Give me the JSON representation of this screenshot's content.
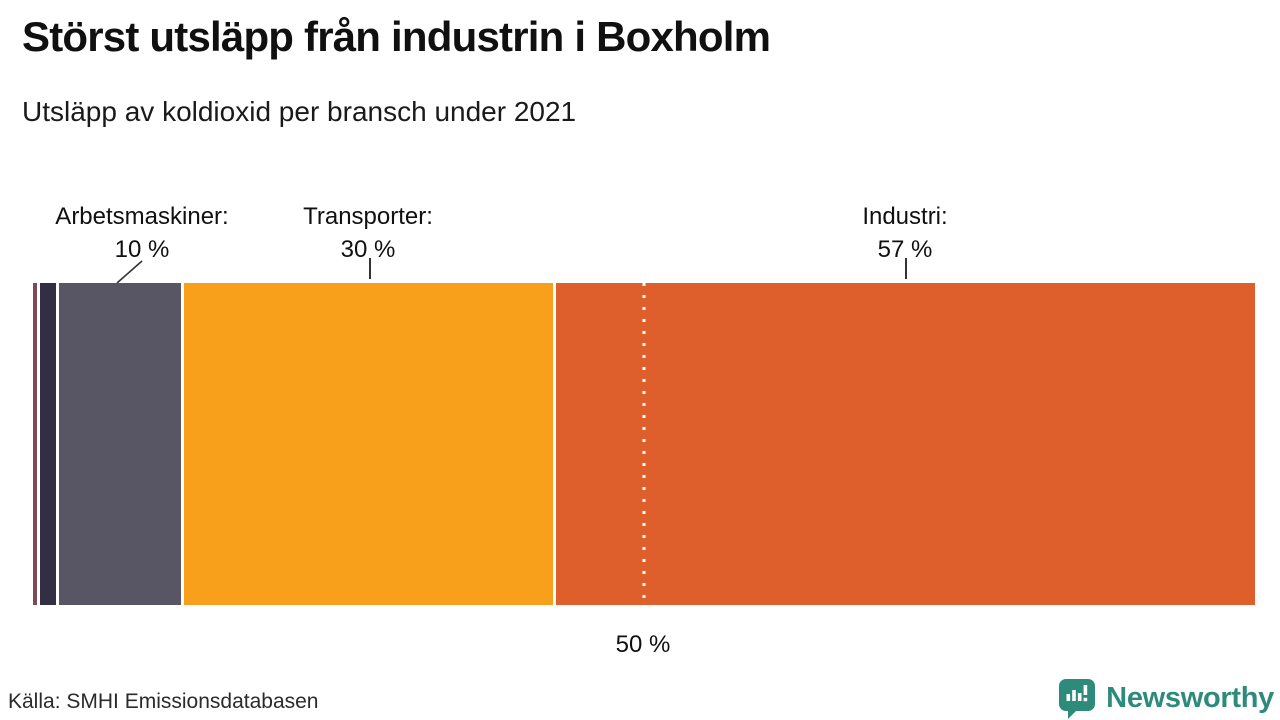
{
  "header": {
    "title": "Störst utsläpp från industrin i Boxholm",
    "subtitle": "Utsläpp av koldioxid per bransch under 2021"
  },
  "chart_data": {
    "type": "bar",
    "variant": "horizontal-stacked-single-bar",
    "unit": "%",
    "xlim": [
      0,
      100
    ],
    "segments": [
      {
        "label": "",
        "value": 0.3,
        "color": "#7E4A58"
      },
      {
        "label": "",
        "value": 1.3,
        "color": "#322F45"
      },
      {
        "label": "Arbetsmaskiner",
        "value": 10,
        "color": "#585564"
      },
      {
        "label": "Transporter",
        "value": 30,
        "color": "#F8A01B"
      },
      {
        "label": "Industri",
        "value": 57,
        "color": "#DF5F2C"
      }
    ],
    "callouts": [
      {
        "line1": "Arbetsmaskiner:",
        "line2": "10 %"
      },
      {
        "line1": "Transporter:",
        "line2": "30 %"
      },
      {
        "line1": "Industri:",
        "line2": "57 %"
      }
    ],
    "reference_line": {
      "value": 50,
      "label": "50 %",
      "style": "dotted-white"
    },
    "legend_position": "above-bar-callouts",
    "grid": false
  },
  "footer": {
    "source": "Källa: SMHI Emissionsdatabasen",
    "logo_text": "Newsworthy"
  },
  "colors": {
    "background": "#FFFFFF",
    "text": "#101010",
    "leader_line": "#333333",
    "brand_teal": "#2E8B7C"
  }
}
